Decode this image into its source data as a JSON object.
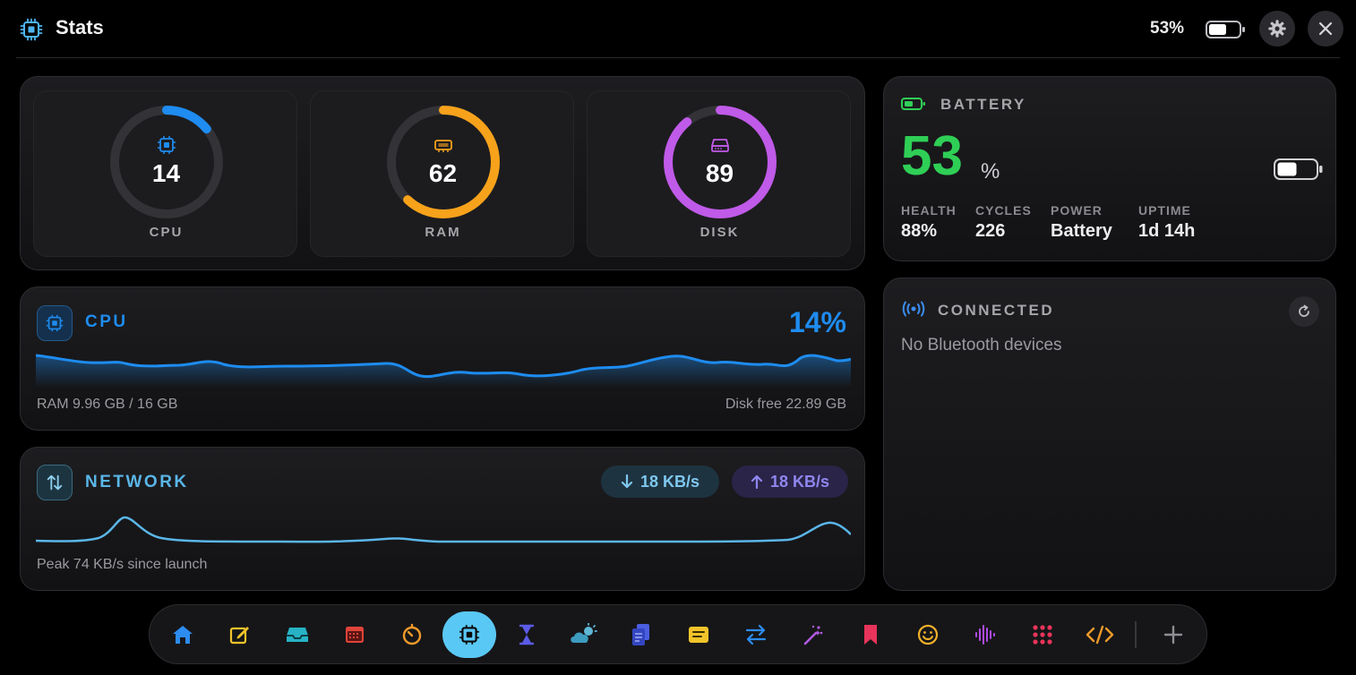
{
  "header": {
    "title": "Stats",
    "battery_percent": "53%",
    "icons": {
      "app": "cpu-chip-icon",
      "battery": "battery-icon",
      "settings": "gear-icon",
      "close": "close-icon"
    }
  },
  "gauges": [
    {
      "label": "CPU",
      "value": "14",
      "percent": 14,
      "color": "#1e8cf0",
      "icon": "cpu-chip-icon"
    },
    {
      "label": "RAM",
      "value": "62",
      "percent": 62,
      "color": "#f7a21b",
      "icon": "memory-icon"
    },
    {
      "label": "DISK",
      "value": "89",
      "percent": 89,
      "color": "#c05ae8",
      "icon": "disk-icon"
    }
  ],
  "cpu_panel": {
    "title": "CPU",
    "percent": "14%",
    "ram_text": "RAM 9.96 GB / 16 GB",
    "disk_text": "Disk free 22.89 GB",
    "color": "#1e8cf0"
  },
  "network_panel": {
    "title": "NETWORK",
    "download": "18 KB/s",
    "upload": "18 KB/s",
    "peak_text": "Peak 74 KB/s since launch",
    "color": "#5ab6e8"
  },
  "battery": {
    "title": "BATTERY",
    "level": "53",
    "unit": "%",
    "color": "#2fcf56",
    "stats": [
      {
        "label": "HEALTH",
        "value": "88%"
      },
      {
        "label": "CYCLES",
        "value": "226"
      },
      {
        "label": "POWER",
        "value": "Battery"
      },
      {
        "label": "UPTIME",
        "value": "1d 14h"
      }
    ]
  },
  "connected": {
    "title": "CONNECTED",
    "empty_text": "No Bluetooth devices",
    "icons": {
      "signal": "wireless-signal-icon",
      "refresh": "refresh-icon"
    }
  },
  "dock": {
    "active": "cpu-chip-icon",
    "items": [
      "home-icon",
      "note-edit-icon",
      "inbox-tray-icon",
      "calendar-icon",
      "timer-icon",
      "cpu-chip-icon",
      "hourglass-icon",
      "weather-icon",
      "documents-icon",
      "notes-icon",
      "convert-arrows-icon",
      "magic-wand-icon",
      "bookmark-icon",
      "smiley-icon",
      "audio-wave-icon",
      "apps-grid-icon",
      "code-icon",
      "add-icon"
    ]
  }
}
